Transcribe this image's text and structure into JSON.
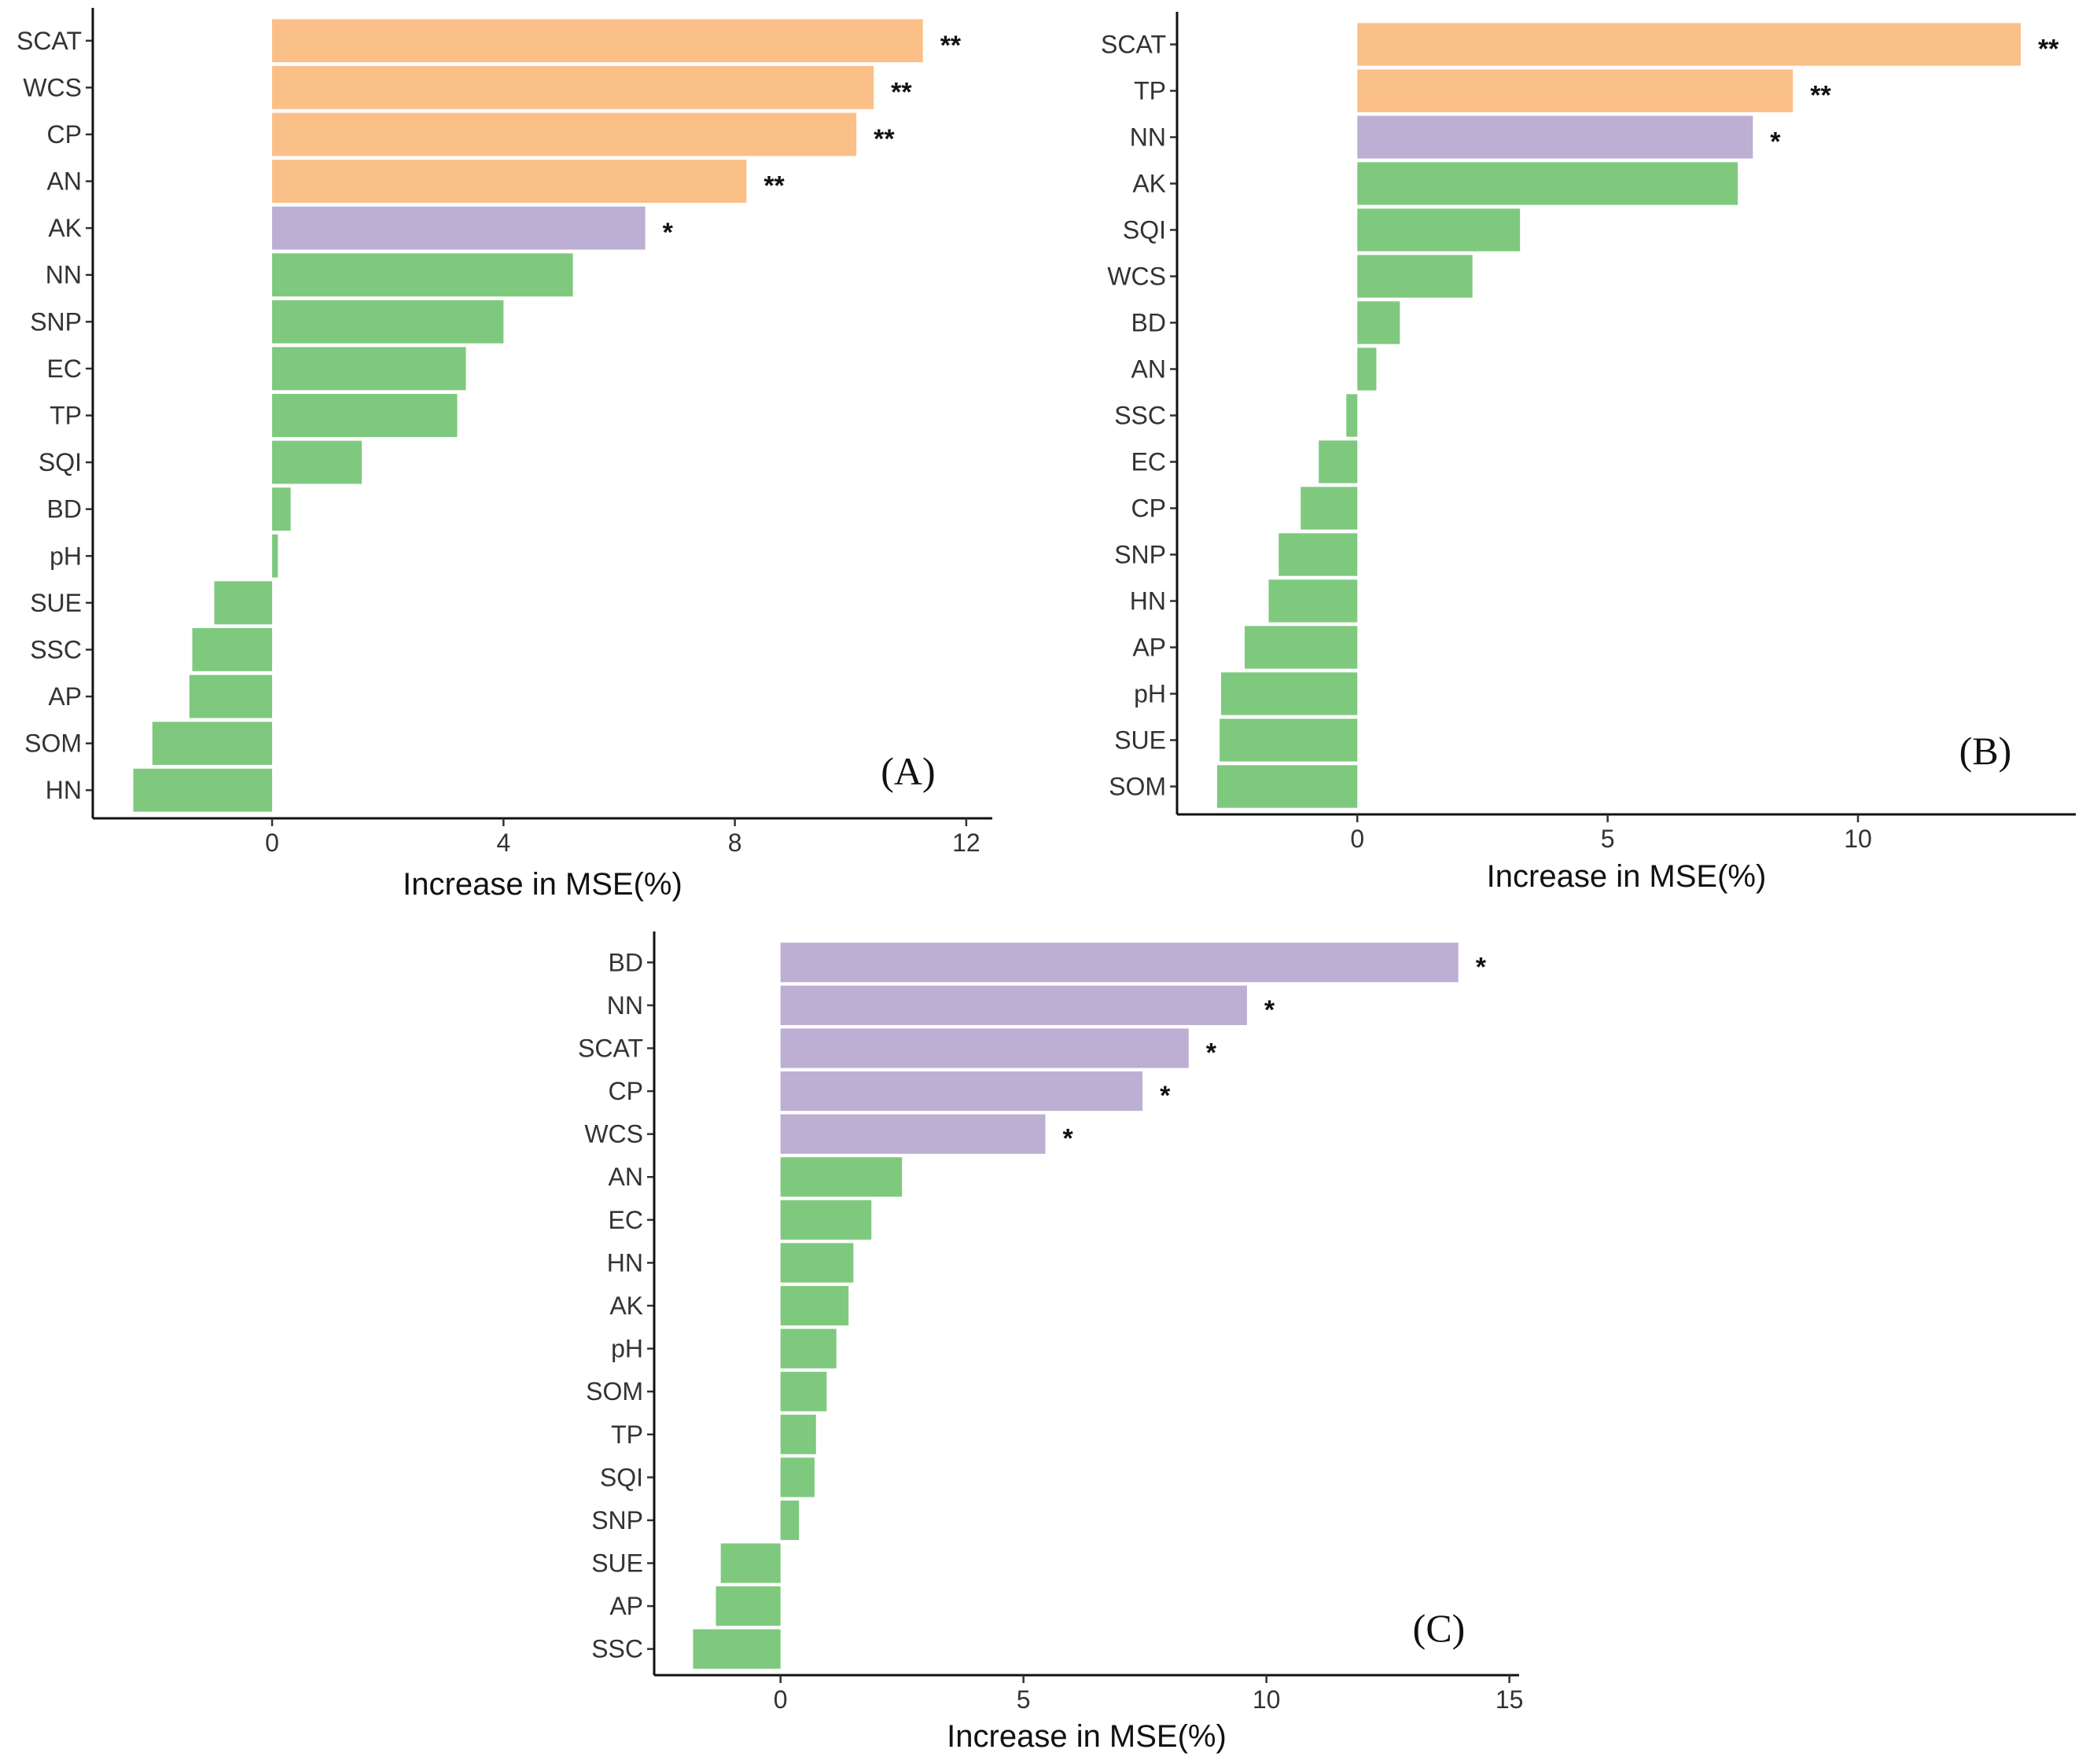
{
  "colors": {
    "sig2": "#fbbf88",
    "sig1": "#bdaed4",
    "ns": "#7fc97f"
  },
  "chart_data": [
    {
      "type": "bar",
      "orientation": "horizontal",
      "panel_label": "(A)",
      "xlabel": "Increase in MSE(%)",
      "xticks": [
        0,
        4,
        8,
        12
      ],
      "xlim": [
        -3.1,
        12.45
      ],
      "categories": [
        "SCAT",
        "WCS",
        "CP",
        "AN",
        "AK",
        "NN",
        "SNP",
        "EC",
        "TP",
        "SQI",
        "BD",
        "pH",
        "SUE",
        "SSC",
        "AP",
        "SOM",
        "HN"
      ],
      "values": [
        11.25,
        10.4,
        10.1,
        8.2,
        6.45,
        5.2,
        4.0,
        3.35,
        3.2,
        1.55,
        0.32,
        0.1,
        -1.0,
        -1.38,
        -1.43,
        -2.07,
        -2.4
      ],
      "significance": [
        "**",
        "**",
        "**",
        "**",
        "*",
        "",
        "",
        "",
        "",
        "",
        "",
        "",
        "",
        "",
        "",
        "",
        ""
      ]
    },
    {
      "type": "bar",
      "orientation": "horizontal",
      "panel_label": "(B)",
      "xlabel": "Increase in MSE(%)",
      "xticks": [
        0,
        5,
        10
      ],
      "xlim": [
        -3.6,
        14.35
      ],
      "categories": [
        "SCAT",
        "TP",
        "NN",
        "AK",
        "SQI",
        "WCS",
        "BD",
        "AN",
        "SSC",
        "EC",
        "CP",
        "SNP",
        "HN",
        "AP",
        "pH",
        "SUE",
        "SOM"
      ],
      "values": [
        13.25,
        8.7,
        7.9,
        7.6,
        3.25,
        2.3,
        0.85,
        0.38,
        -0.22,
        -0.77,
        -1.13,
        -1.57,
        -1.77,
        -2.25,
        -2.72,
        -2.75,
        -2.8
      ],
      "significance": [
        "**",
        "**",
        "*",
        "",
        "",
        "",
        "",
        "",
        "",
        "",
        "",
        "",
        "",
        "",
        "",
        "",
        ""
      ]
    },
    {
      "type": "bar",
      "orientation": "horizontal",
      "panel_label": "(C)",
      "xlabel": "Increase in MSE(%)",
      "xticks": [
        0,
        5,
        10,
        15
      ],
      "xlim": [
        -2.6,
        15.2
      ],
      "categories": [
        "BD",
        "NN",
        "SCAT",
        "CP",
        "WCS",
        "AN",
        "EC",
        "HN",
        "AK",
        "pH",
        "SOM",
        "TP",
        "SQI",
        "SNP",
        "SUE",
        "AP",
        "SSC"
      ],
      "values": [
        13.95,
        9.6,
        8.4,
        7.45,
        5.45,
        2.5,
        1.87,
        1.5,
        1.4,
        1.15,
        0.95,
        0.73,
        0.7,
        0.38,
        -1.23,
        -1.33,
        -1.8
      ],
      "significance": [
        "*",
        "*",
        "*",
        "*",
        "*",
        "",
        "",
        "",
        "",
        "",
        "",
        "",
        "",
        "",
        "",
        "",
        ""
      ]
    }
  ]
}
